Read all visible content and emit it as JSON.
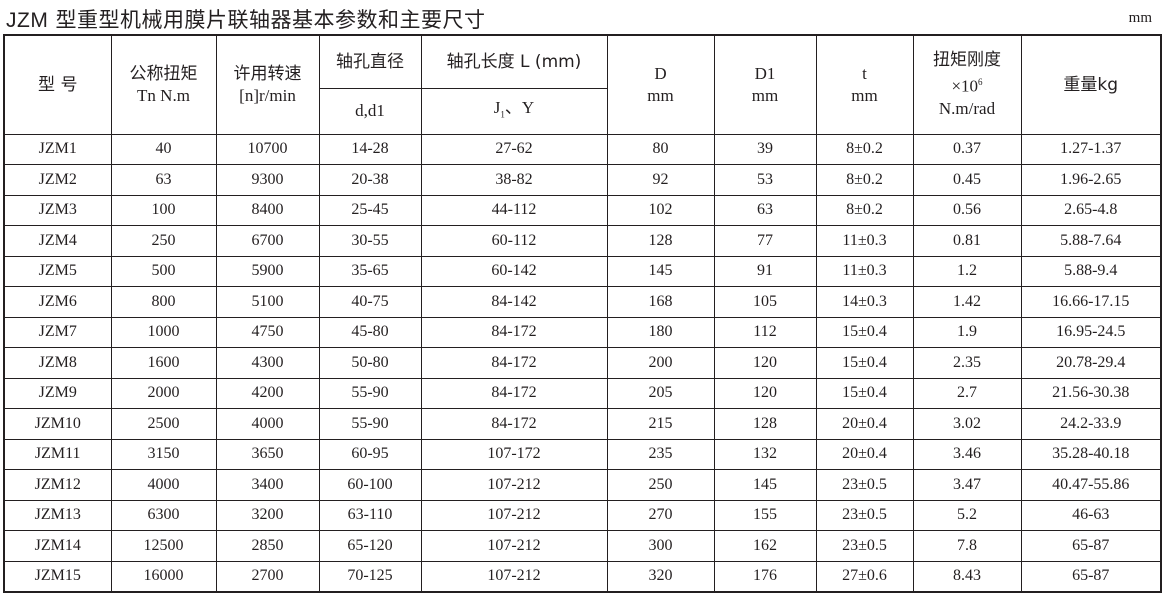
{
  "title_code": "JZM",
  "title_text": "型重型机械用膜片联轴器基本参数和主要尺寸",
  "unit": "mm",
  "headers": {
    "model": "型 号",
    "torque_cn": "公称扭矩",
    "torque_unit": "Tn N.m",
    "speed_cn": "许用转速",
    "speed_unit": "[n]r/min",
    "bore_dia_cn": "轴孔直径",
    "bore_dia_sub": "d,d1",
    "bore_len_cn": "轴孔长度 L (mm)",
    "bore_len_sub_j": "J",
    "bore_len_sub_j_index": "1",
    "bore_len_sub_y": "、Y",
    "D": "D",
    "D_unit": "mm",
    "D1": "D1",
    "D1_unit": "mm",
    "t": "t",
    "t_unit": "mm",
    "stiffness_cn": "扭矩刚度",
    "stiffness_mult": "×10",
    "stiffness_exp": "6",
    "stiffness_unit": "N.m/rad",
    "weight": "重量kg"
  },
  "rows": [
    [
      "JZM1",
      "40",
      "10700",
      "14-28",
      "27-62",
      "80",
      "39",
      "8±0.2",
      "0.37",
      "1.27-1.37"
    ],
    [
      "JZM2",
      "63",
      "9300",
      "20-38",
      "38-82",
      "92",
      "53",
      "8±0.2",
      "0.45",
      "1.96-2.65"
    ],
    [
      "JZM3",
      "100",
      "8400",
      "25-45",
      "44-112",
      "102",
      "63",
      "8±0.2",
      "0.56",
      "2.65-4.8"
    ],
    [
      "JZM4",
      "250",
      "6700",
      "30-55",
      "60-112",
      "128",
      "77",
      "11±0.3",
      "0.81",
      "5.88-7.64"
    ],
    [
      "JZM5",
      "500",
      "5900",
      "35-65",
      "60-142",
      "145",
      "91",
      "11±0.3",
      "1.2",
      "5.88-9.4"
    ],
    [
      "JZM6",
      "800",
      "5100",
      "40-75",
      "84-142",
      "168",
      "105",
      "14±0.3",
      "1.42",
      "16.66-17.15"
    ],
    [
      "JZM7",
      "1000",
      "4750",
      "45-80",
      "84-172",
      "180",
      "112",
      "15±0.4",
      "1.9",
      "16.95-24.5"
    ],
    [
      "JZM8",
      "1600",
      "4300",
      "50-80",
      "84-172",
      "200",
      "120",
      "15±0.4",
      "2.35",
      "20.78-29.4"
    ],
    [
      "JZM9",
      "2000",
      "4200",
      "55-90",
      "84-172",
      "205",
      "120",
      "15±0.4",
      "2.7",
      "21.56-30.38"
    ],
    [
      "JZM10",
      "2500",
      "4000",
      "55-90",
      "84-172",
      "215",
      "128",
      "20±0.4",
      "3.02",
      "24.2-33.9"
    ],
    [
      "JZM11",
      "3150",
      "3650",
      "60-95",
      "107-172",
      "235",
      "132",
      "20±0.4",
      "3.46",
      "35.28-40.18"
    ],
    [
      "JZM12",
      "4000",
      "3400",
      "60-100",
      "107-212",
      "250",
      "145",
      "23±0.5",
      "3.47",
      "40.47-55.86"
    ],
    [
      "JZM13",
      "6300",
      "3200",
      "63-110",
      "107-212",
      "270",
      "155",
      "23±0.5",
      "5.2",
      "46-63"
    ],
    [
      "JZM14",
      "12500",
      "2850",
      "65-120",
      "107-212",
      "300",
      "162",
      "23±0.5",
      "7.8",
      "65-87"
    ],
    [
      "JZM15",
      "16000",
      "2700",
      "70-125",
      "107-212",
      "320",
      "176",
      "27±0.6",
      "8.43",
      "65-87"
    ]
  ]
}
